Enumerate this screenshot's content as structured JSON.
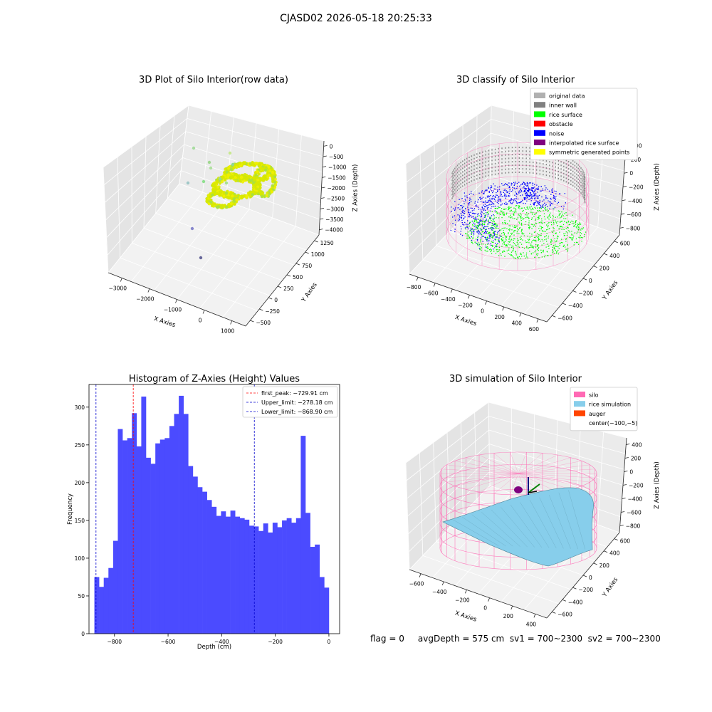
{
  "suptitle": "CJASD02 2026-05-18 20:25:33",
  "status_text": "flag = 0     avgDepth = 575 cm  sv1 = 700~2300  sv2 = 700~2300",
  "colors": {
    "histogram_bar": "#4b4bff",
    "first_peak_line": "#ff0000",
    "limit_lines": "#0000cc",
    "silo_wire": "#ff69b4",
    "rice_simulation": "#87ceeb",
    "auger": "#ff4500",
    "original_data": "#b0b0b0",
    "inner_wall": "#808080",
    "rice_surface": "#00ff00",
    "obstacle": "#ff0000",
    "noise": "#0000ff",
    "interpolated_rice_surface": "#800080",
    "symmetric_generated_points": "#ffff00"
  },
  "chart_data": [
    {
      "id": "raw3d",
      "type": "scatter",
      "title": "3D Plot of Silo Interior(row data)",
      "xlabel": "X Axies",
      "ylabel": "Y Axies",
      "zlabel": "Z Axies (Depth)",
      "x_ticks": [
        "−3000",
        "−2000",
        "−1000",
        "0",
        "1000"
      ],
      "y_ticks": [
        "−500",
        "−250",
        "0",
        "250",
        "500",
        "750",
        "1000",
        "1250"
      ],
      "z_ticks": [
        "0",
        "−500",
        "−1000",
        "−1500",
        "−2000",
        "−2500",
        "−3000",
        "−3500",
        "−4000"
      ]
    },
    {
      "id": "classify3d",
      "type": "scatter",
      "title": "3D classify of Silo Interior",
      "xlabel": "X Axies",
      "ylabel": "Y Axies",
      "zlabel": "Z Axies (Depth)",
      "x_ticks": [
        "−800",
        "−600",
        "−400",
        "−200",
        "0",
        "200",
        "400",
        "600"
      ],
      "y_ticks": [
        "−600",
        "−400",
        "−200",
        "0",
        "200",
        "400",
        "600"
      ],
      "z_ticks": [
        "400",
        "200",
        "0",
        "−200",
        "−400",
        "−600",
        "−800"
      ],
      "z_ticks_partial": [
        "00"
      ],
      "legend": [
        "original data",
        "inner wall",
        "rice surface",
        "obstacle",
        "noise",
        "interpolated rice surface",
        "symmetric generated points"
      ],
      "legend_position": "top-right"
    },
    {
      "id": "histogram",
      "type": "bar",
      "title": "Histogram of Z-Axies (Height) Values",
      "xlabel": "Depth (cm)",
      "ylabel": "Frequency",
      "xlim": [
        -895,
        40
      ],
      "ylim": [
        0,
        330
      ],
      "x_ticks": [
        -800,
        -600,
        -400,
        -200,
        0
      ],
      "y_ticks": [
        0,
        50,
        100,
        150,
        200,
        250,
        300
      ],
      "bin_start": -875,
      "bin_width": 17.5,
      "values": [
        75,
        62,
        74,
        87,
        123,
        271,
        256,
        259,
        292,
        248,
        314,
        233,
        225,
        252,
        257,
        259,
        275,
        291,
        315,
        291,
        222,
        208,
        194,
        188,
        177,
        168,
        156,
        162,
        155,
        163,
        155,
        153,
        151,
        143,
        142,
        136,
        146,
        134,
        147,
        141,
        150,
        153,
        147,
        153,
        262,
        160,
        115,
        118,
        75,
        61
      ],
      "lines": [
        {
          "label": "first_peak: −729.91 cm",
          "x": -729.91,
          "color": "#ff0000"
        },
        {
          "label": "Upper_limit: −278.18 cm",
          "x": -278.18,
          "color": "#0000cc"
        },
        {
          "label": "Lower_limit: −868.90 cm",
          "x": -868.9,
          "color": "#0000cc"
        }
      ],
      "legend_position": "top-right"
    },
    {
      "id": "simulation3d",
      "type": "scatter",
      "title": "3D simulation of Silo Interior",
      "xlabel": "X Axies",
      "ylabel": "Y Axies",
      "zlabel": "Z Axies (Depth)",
      "x_ticks": [
        "−600",
        "−400",
        "−200",
        "0",
        "200",
        "400"
      ],
      "y_ticks": [
        "−600",
        "−400",
        "−200",
        "0",
        "200",
        "400",
        "600"
      ],
      "z_ticks": [
        "400",
        "200",
        "0",
        "−200",
        "−400",
        "−600",
        "−800"
      ],
      "legend": [
        "silo",
        "rice simulation",
        "auger",
        "center(−100,−5)"
      ],
      "legend_position": "top-right"
    }
  ]
}
